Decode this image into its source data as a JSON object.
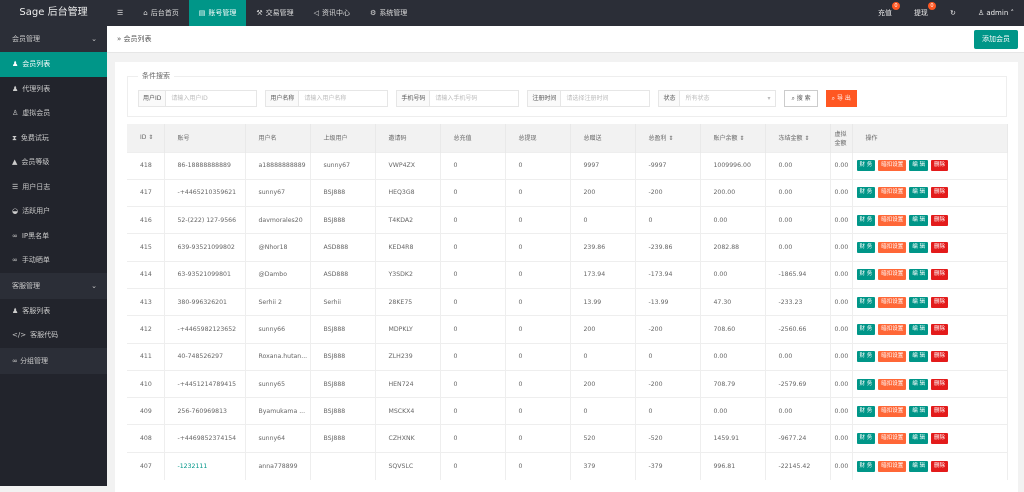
{
  "app": {
    "title": "Sage 后台管理"
  },
  "topnav": {
    "menu_icon": "☰",
    "items": [
      {
        "icon": "home-icon",
        "label": "后台首页"
      },
      {
        "icon": "id-card-icon",
        "label": "账号管理"
      },
      {
        "icon": "gavel-icon",
        "label": "交易管理"
      },
      {
        "icon": "bullhorn-icon",
        "label": "资讯中心"
      },
      {
        "icon": "cogs-icon",
        "label": "系统管理"
      }
    ],
    "active": 1,
    "recharge": "充值",
    "recharge_count": "0",
    "withdraw": "提现",
    "withdraw_count": "0",
    "user": "admin"
  },
  "sidebar": {
    "groups": [
      {
        "label": "会员管理",
        "items": [
          "会员列表",
          "代理列表",
          "虚拟会员",
          "免费试玩",
          "会员等级",
          "用户日志",
          "活跃用户",
          "IP黑名单",
          "手动晒单"
        ]
      },
      {
        "label": "客服管理",
        "items": [
          "客服列表",
          "客服代码"
        ]
      }
    ],
    "single": "分组管理",
    "active": "会员列表"
  },
  "breadcrumb": "会员列表",
  "add_button": "添加会员",
  "search": {
    "legend": "条件搜索",
    "fields": [
      {
        "label": "用户ID",
        "placeholder": "请输入用户ID"
      },
      {
        "label": "用户名称",
        "placeholder": "请输入用户名称"
      },
      {
        "label": "手机号码",
        "placeholder": "请输入手机号码"
      },
      {
        "label": "注册时间",
        "placeholder": "请选择注册时间"
      },
      {
        "label": "状态",
        "placeholder": "所有状态"
      }
    ],
    "search_btn": "搜 索",
    "export_btn": "导 出"
  },
  "table": {
    "headers": [
      "ID",
      "账号",
      "用户名",
      "上级用户",
      "邀请码",
      "总充值",
      "总提现",
      "总赠送",
      "总盈利",
      "账户余额",
      "冻结金额",
      "虚拟金额",
      "操作"
    ],
    "actions": [
      "财 务",
      "暗扣设置",
      "编 辑",
      "删除"
    ],
    "rows": [
      [
        "418",
        "86-18888888889",
        "a18888888889",
        "sunny67",
        "VWP4ZX",
        "0",
        "0",
        "9997",
        "-9997",
        "1009996.00",
        "0.00",
        "0.00"
      ],
      [
        "417",
        "-+4465210359621",
        "sunny67",
        "BSJ888",
        "HEQ3G8",
        "0",
        "0",
        "200",
        "-200",
        "200.00",
        "0.00",
        "0.00"
      ],
      [
        "416",
        "52-(222) 127-9566",
        "davmorales20",
        "BSJ888",
        "T4KDA2",
        "0",
        "0",
        "0",
        "0",
        "0.00",
        "0.00",
        "0.00"
      ],
      [
        "415",
        "639-93521099802",
        "@Nhor18",
        "ASD888",
        "KED4R8",
        "0",
        "0",
        "239.86",
        "-239.86",
        "2082.88",
        "0.00",
        "0.00"
      ],
      [
        "414",
        "63-93521099801",
        "@Dambo",
        "ASD888",
        "Y3SDK2",
        "0",
        "0",
        "173.94",
        "-173.94",
        "0.00",
        "-1865.94",
        "0.00"
      ],
      [
        "413",
        "380-996326201",
        "Serhii 2",
        "Serhii",
        "28KE75",
        "0",
        "0",
        "13.99",
        "-13.99",
        "47.30",
        "-233.23",
        "0.00"
      ],
      [
        "412",
        "-+4465982123652",
        "sunny66",
        "BSJ888",
        "MDPKLY",
        "0",
        "0",
        "200",
        "-200",
        "708.60",
        "-2560.66",
        "0.00"
      ],
      [
        "411",
        "40-748526297",
        "Roxana.hutan...",
        "BSJ888",
        "ZLH239",
        "0",
        "0",
        "0",
        "0",
        "0.00",
        "0.00",
        "0.00"
      ],
      [
        "410",
        "-+4451214789415",
        "sunny65",
        "BSJ888",
        "HEN724",
        "0",
        "0",
        "200",
        "-200",
        "708.79",
        "-2579.69",
        "0.00"
      ],
      [
        "409",
        "256-760969813",
        "Byamukama ...",
        "BSJ888",
        "MSCKX4",
        "0",
        "0",
        "0",
        "0",
        "0.00",
        "0.00",
        "0.00"
      ],
      [
        "408",
        "-+4469852374154",
        "sunny64",
        "BSJ888",
        "CZHXNK",
        "0",
        "0",
        "520",
        "-520",
        "1459.91",
        "-9677.24",
        "0.00"
      ],
      [
        "407",
        "-1232111",
        "anna778899",
        "",
        "SQVSLC",
        "0",
        "0",
        "379",
        "-379",
        "996.81",
        "-22145.42",
        "0.00"
      ]
    ]
  }
}
